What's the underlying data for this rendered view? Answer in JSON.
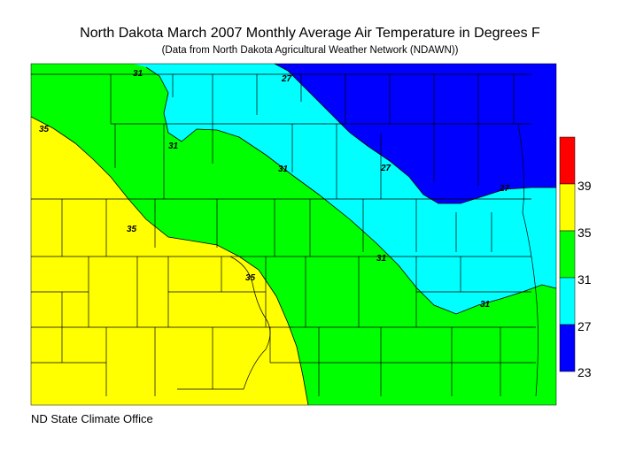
{
  "title": "North Dakota March 2007 Monthly Average Air Temperature in Degrees F",
  "subtitle": "(Data from North Dakota Agricultural Weather Network (NDAWN))",
  "footer": "ND State Climate Office",
  "legend": {
    "ticks": [
      "39",
      "35",
      "31",
      "27",
      "23"
    ],
    "bins": [
      {
        "range": [
          23,
          27
        ],
        "color": "#0000ff"
      },
      {
        "range": [
          27,
          31
        ],
        "color": "#00ffff"
      },
      {
        "range": [
          31,
          35
        ],
        "color": "#00ff00"
      },
      {
        "range": [
          35,
          39
        ],
        "color": "#ffff00"
      },
      {
        "range": [
          39,
          43
        ],
        "color": "#ff0000"
      }
    ]
  },
  "contour_labels": {
    "c31": "31",
    "c27": "27",
    "c35": "35"
  }
}
